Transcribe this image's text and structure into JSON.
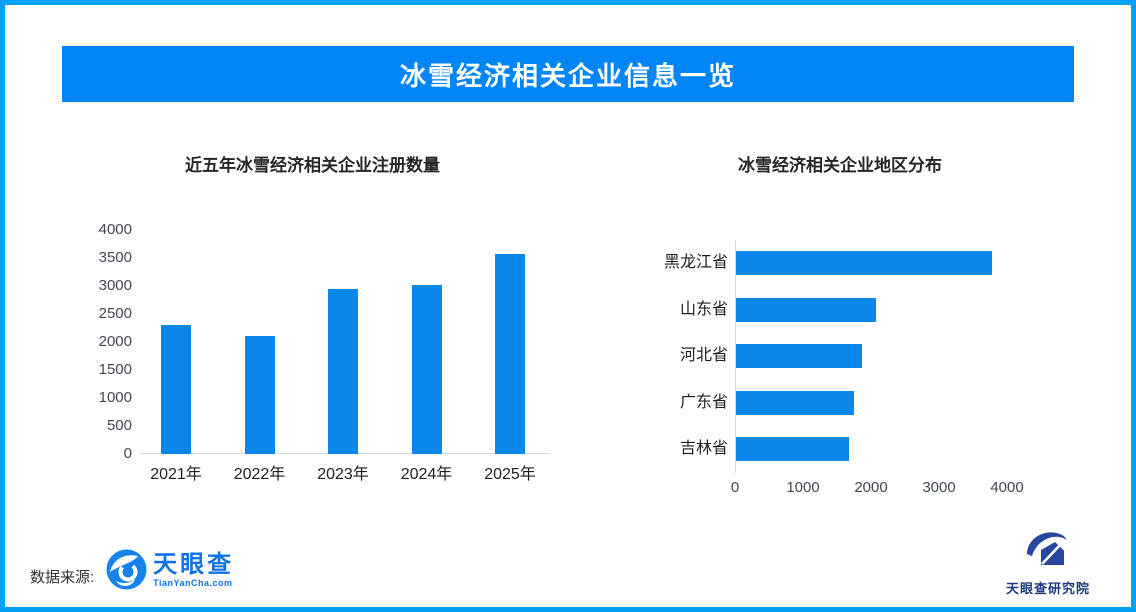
{
  "header": {
    "title": "冰雪经济相关企业信息一览"
  },
  "chart_data": [
    {
      "type": "bar",
      "orientation": "vertical",
      "title": "近五年冰雪经济相关企业注册数量",
      "categories": [
        "2021年",
        "2022年",
        "2023年",
        "2024年",
        "2025年"
      ],
      "values": [
        2300,
        2110,
        2950,
        3020,
        3580
      ],
      "ylabel": "",
      "xlabel": "",
      "ylim": [
        0,
        4000
      ],
      "yticks": [
        0,
        500,
        1000,
        1500,
        2000,
        2500,
        3000,
        3500,
        4000
      ],
      "grid": false,
      "legend": false,
      "bar_color": "#0b86ec"
    },
    {
      "type": "bar",
      "orientation": "horizontal",
      "title": "冰雪经济相关企业地区分布",
      "categories": [
        "黑龙江省",
        "山东省",
        "河北省",
        "广东省",
        "吉林省"
      ],
      "values": [
        3770,
        2060,
        1850,
        1730,
        1660
      ],
      "ylabel": "",
      "xlabel": "",
      "xlim": [
        0,
        4000
      ],
      "xticks": [
        0,
        1000,
        2000,
        3000,
        4000
      ],
      "grid": false,
      "legend": false,
      "bar_color": "#0b86ec"
    }
  ],
  "footer": {
    "source_label": "数据来源:",
    "tianyancha": {
      "name": "天眼查",
      "domain": "TianYanCha.com",
      "brand_color": "#1173e8"
    },
    "institute": {
      "name": "天眼查研究院",
      "brand_color": "#1b3c80"
    }
  },
  "colors": {
    "border": "#04a1f7",
    "banner": "#0286f7",
    "bar": "#0b86ec",
    "axis_text": "#404756",
    "label_text": "#1f1f1f",
    "axis_line": "#d9d9d9"
  }
}
